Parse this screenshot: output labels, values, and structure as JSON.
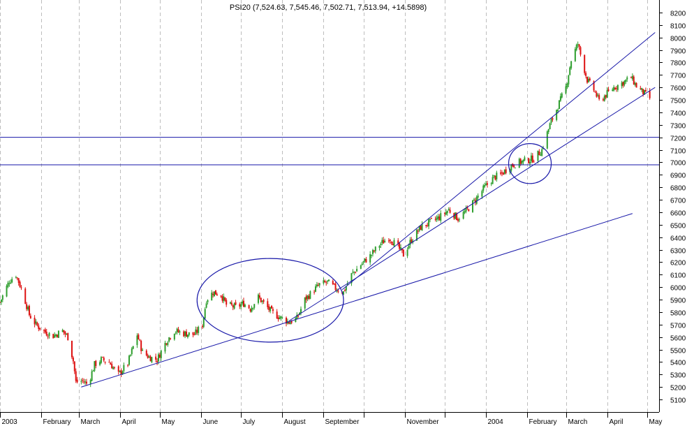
{
  "chart_data": {
    "type": "candlestick",
    "title": "PSI20 (7,524.63, 7,545.46, 7,502.71, 7,513.94, +14.5898)",
    "ylim": [
      5000,
      8300
    ],
    "y_ticks": [
      5100,
      5200,
      5300,
      5400,
      5500,
      5600,
      5700,
      5800,
      5900,
      6000,
      6100,
      6200,
      6300,
      6400,
      6500,
      6600,
      6700,
      6800,
      6900,
      7000,
      7100,
      7200,
      7300,
      7400,
      7500,
      7600,
      7700,
      7800,
      7900,
      8000,
      8100,
      8200
    ],
    "x_range": [
      "2003-01-01",
      "2004-05-10"
    ],
    "x_ticks": [
      {
        "date": "2003-01-01",
        "label": "2003"
      },
      {
        "date": "2003-02-01",
        "label": "February"
      },
      {
        "date": "2003-03-01",
        "label": "March"
      },
      {
        "date": "2003-04-01",
        "label": "April"
      },
      {
        "date": "2003-05-01",
        "label": "May"
      },
      {
        "date": "2003-06-01",
        "label": "June"
      },
      {
        "date": "2003-07-01",
        "label": "July"
      },
      {
        "date": "2003-08-01",
        "label": "August"
      },
      {
        "date": "2003-09-01",
        "label": "September"
      },
      {
        "date": "2003-10-01",
        "label": ""
      },
      {
        "date": "2003-11-01",
        "label": "November"
      },
      {
        "date": "2003-12-01",
        "label": ""
      },
      {
        "date": "2004-01-01",
        "label": "2004"
      },
      {
        "date": "2004-02-01",
        "label": "February"
      },
      {
        "date": "2004-03-01",
        "label": "March"
      },
      {
        "date": "2004-04-01",
        "label": "April"
      },
      {
        "date": "2004-05-01",
        "label": "May"
      }
    ],
    "grid": true,
    "price_points": [
      [
        "2003-01-01",
        5880
      ],
      [
        "2003-01-08",
        6050
      ],
      [
        "2003-01-13",
        6100
      ],
      [
        "2003-01-18",
        5960
      ],
      [
        "2003-01-23",
        5780
      ],
      [
        "2003-01-28",
        5700
      ],
      [
        "2003-02-04",
        5640
      ],
      [
        "2003-02-10",
        5610
      ],
      [
        "2003-02-17",
        5650
      ],
      [
        "2003-02-21",
        5600
      ],
      [
        "2003-02-25",
        5410
      ],
      [
        "2003-02-27",
        5240
      ],
      [
        "2003-03-04",
        5250
      ],
      [
        "2003-03-08",
        5220
      ],
      [
        "2003-03-13",
        5380
      ],
      [
        "2003-03-18",
        5420
      ],
      [
        "2003-03-24",
        5400
      ],
      [
        "2003-03-31",
        5300
      ],
      [
        "2003-04-07",
        5390
      ],
      [
        "2003-04-14",
        5620
      ],
      [
        "2003-04-18",
        5480
      ],
      [
        "2003-04-23",
        5440
      ],
      [
        "2003-04-29",
        5420
      ],
      [
        "2003-05-06",
        5570
      ],
      [
        "2003-05-12",
        5650
      ],
      [
        "2003-05-19",
        5630
      ],
      [
        "2003-05-27",
        5620
      ],
      [
        "2003-06-02",
        5700
      ],
      [
        "2003-06-05",
        5900
      ],
      [
        "2003-06-10",
        5960
      ],
      [
        "2003-06-16",
        5940
      ],
      [
        "2003-06-20",
        5860
      ],
      [
        "2003-06-27",
        5840
      ],
      [
        "2003-07-03",
        5870
      ],
      [
        "2003-07-08",
        5830
      ],
      [
        "2003-07-14",
        5920
      ],
      [
        "2003-07-18",
        5870
      ],
      [
        "2003-07-24",
        5800
      ],
      [
        "2003-07-30",
        5760
      ],
      [
        "2003-08-06",
        5720
      ],
      [
        "2003-08-12",
        5750
      ],
      [
        "2003-08-18",
        5900
      ],
      [
        "2003-08-25",
        5980
      ],
      [
        "2003-08-29",
        6020
      ],
      [
        "2003-09-04",
        6040
      ],
      [
        "2003-09-10",
        5990
      ],
      [
        "2003-09-16",
        5960
      ],
      [
        "2003-09-22",
        6100
      ],
      [
        "2003-09-29",
        6180
      ],
      [
        "2003-10-06",
        6250
      ],
      [
        "2003-10-13",
        6340
      ],
      [
        "2003-10-20",
        6400
      ],
      [
        "2003-10-27",
        6320
      ],
      [
        "2003-10-31",
        6260
      ],
      [
        "2003-11-06",
        6380
      ],
      [
        "2003-11-13",
        6480
      ],
      [
        "2003-11-20",
        6520
      ],
      [
        "2003-11-27",
        6560
      ],
      [
        "2003-12-04",
        6620
      ],
      [
        "2003-12-11",
        6550
      ],
      [
        "2003-12-18",
        6620
      ],
      [
        "2003-12-24",
        6700
      ],
      [
        "2003-12-31",
        6800
      ],
      [
        "2004-01-07",
        6880
      ],
      [
        "2004-01-12",
        6900
      ],
      [
        "2004-01-19",
        6970
      ],
      [
        "2004-01-26",
        7000
      ],
      [
        "2004-02-02",
        7020
      ],
      [
        "2004-02-06",
        7030
      ],
      [
        "2004-02-12",
        7100
      ],
      [
        "2004-02-18",
        7300
      ],
      [
        "2004-02-24",
        7450
      ],
      [
        "2004-03-01",
        7600
      ],
      [
        "2004-03-05",
        7820
      ],
      [
        "2004-03-10",
        7950
      ],
      [
        "2004-03-13",
        7820
      ],
      [
        "2004-03-17",
        7660
      ],
      [
        "2004-03-22",
        7580
      ],
      [
        "2004-03-26",
        7490
      ],
      [
        "2004-03-31",
        7540
      ],
      [
        "2004-04-06",
        7600
      ],
      [
        "2004-04-13",
        7640
      ],
      [
        "2004-04-19",
        7680
      ],
      [
        "2004-04-23",
        7610
      ],
      [
        "2004-04-28",
        7560
      ],
      [
        "2004-05-03",
        7514
      ]
    ],
    "annotations": {
      "horizontal_lines": [
        7200,
        6980
      ],
      "trend_lines": [
        {
          "from": [
            "2003-03-03",
            5200
          ],
          "to": [
            "2004-04-20",
            6590
          ]
        },
        {
          "from": [
            "2003-08-06",
            5730
          ],
          "to": [
            "2004-05-07",
            7600
          ]
        },
        {
          "from": [
            "2003-09-15",
            5980
          ],
          "to": [
            "2004-05-07",
            8040
          ]
        }
      ],
      "ellipses": [
        {
          "center": [
            "2003-07-23",
            5895
          ],
          "rx_days": 55,
          "ry": 335
        },
        {
          "center": [
            "2004-02-03",
            6990
          ],
          "rx_days": 16,
          "ry": 160
        }
      ]
    },
    "colors": {
      "up": "#2e9e2e",
      "down": "#dd1111",
      "annotation": "#1616a8",
      "grid": "#bdbdbd"
    }
  }
}
